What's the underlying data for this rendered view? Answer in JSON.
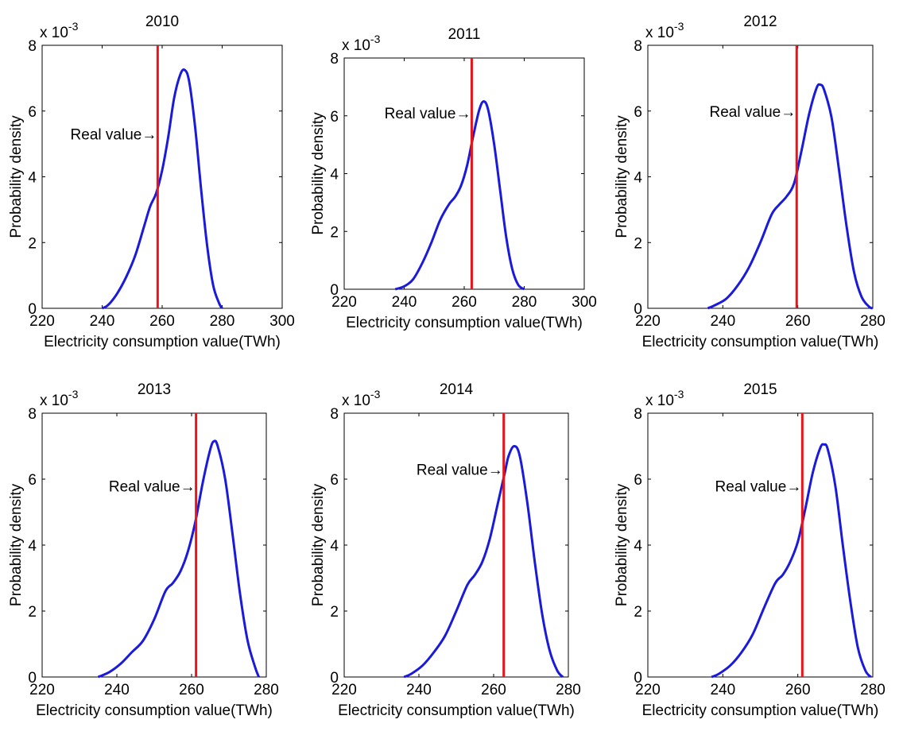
{
  "colors": {
    "curve": "#1a1adc",
    "real_value_line": "#e8141a",
    "axes": "#000000",
    "background": "#ffffff"
  },
  "chart_data": [
    {
      "type": "line",
      "title": "2010",
      "xlabel": "Electricity consumption value(TWh)",
      "ylabel": "Probability density",
      "y_multiplier_label": "x 10",
      "y_multiplier_exponent": "-3",
      "xlim": [
        220,
        300
      ],
      "ylim": [
        0,
        8
      ],
      "xticks": [
        220,
        240,
        260,
        280,
        300
      ],
      "yticks": [
        0,
        2,
        4,
        6,
        8
      ],
      "series": [
        {
          "x": [
            240,
            242,
            245,
            248,
            251,
            254,
            256,
            258,
            260,
            262,
            264,
            266,
            267.5,
            269,
            271,
            273,
            275,
            277,
            279,
            280
          ],
          "y": [
            0,
            0.1,
            0.45,
            0.95,
            1.6,
            2.5,
            3.1,
            3.5,
            4.2,
            5.2,
            6.4,
            7.1,
            7.25,
            6.9,
            5.5,
            3.6,
            1.9,
            0.7,
            0.15,
            0
          ]
        }
      ],
      "real_value": 258.5,
      "annotation": {
        "text": "Real value",
        "arrow": "→",
        "y": 5.3
      }
    },
    {
      "type": "line",
      "title": "2011",
      "xlabel": "Electricity consumption value(TWh)",
      "ylabel": "Probability density",
      "y_multiplier_label": "x 10",
      "y_multiplier_exponent": "-3",
      "xlim": [
        220,
        300
      ],
      "ylim": [
        0,
        8
      ],
      "xticks": [
        220,
        240,
        260,
        280,
        300
      ],
      "yticks": [
        0,
        2,
        4,
        6,
        8
      ],
      "series": [
        {
          "x": [
            237,
            240,
            243,
            246,
            249,
            252,
            255,
            257,
            259,
            261,
            263,
            265,
            266.5,
            268,
            270,
            272,
            274,
            276,
            278,
            280
          ],
          "y": [
            0,
            0.1,
            0.35,
            0.9,
            1.6,
            2.4,
            2.95,
            3.2,
            3.6,
            4.3,
            5.3,
            6.2,
            6.5,
            6.2,
            5.0,
            3.4,
            1.8,
            0.7,
            0.15,
            0
          ]
        }
      ],
      "real_value": 262.5,
      "annotation": {
        "text": "Real value",
        "arrow": "→",
        "y": 6.1
      }
    },
    {
      "type": "line",
      "title": "2012",
      "xlabel": "Electricity consumption value(TWh)",
      "ylabel": "Probability density",
      "y_multiplier_label": "x 10",
      "y_multiplier_exponent": "-3",
      "xlim": [
        220,
        280
      ],
      "ylim": [
        0,
        8
      ],
      "xticks": [
        220,
        240,
        260,
        280
      ],
      "yticks": [
        0,
        2,
        4,
        6,
        8
      ],
      "series": [
        {
          "x": [
            236,
            238,
            241,
            244,
            247,
            250,
            253,
            255,
            257,
            259,
            261,
            263,
            265,
            266,
            267,
            269,
            271,
            273,
            275,
            277,
            279,
            280
          ],
          "y": [
            0,
            0.1,
            0.3,
            0.7,
            1.25,
            2.0,
            2.85,
            3.15,
            3.4,
            3.8,
            4.8,
            5.9,
            6.7,
            6.8,
            6.65,
            5.8,
            4.2,
            2.5,
            1.1,
            0.35,
            0.05,
            0
          ]
        }
      ],
      "real_value": 259.7,
      "annotation": {
        "text": "Real value",
        "arrow": "→",
        "y": 6.0
      }
    },
    {
      "type": "line",
      "title": "2013",
      "xlabel": "Electricity consumption value(TWh)",
      "ylabel": "Probability density",
      "y_multiplier_label": "x 10",
      "y_multiplier_exponent": "-3",
      "xlim": [
        220,
        280
      ],
      "ylim": [
        0,
        8
      ],
      "xticks": [
        220,
        240,
        260,
        280
      ],
      "yticks": [
        0,
        2,
        4,
        6,
        8
      ],
      "series": [
        {
          "x": [
            235,
            238,
            241,
            244,
            247,
            250,
            253,
            255,
            257,
            259,
            261,
            263,
            265,
            266,
            267,
            269,
            271,
            273,
            275,
            277,
            278
          ],
          "y": [
            0,
            0.15,
            0.4,
            0.75,
            1.1,
            1.75,
            2.6,
            2.85,
            3.2,
            3.8,
            4.7,
            5.9,
            6.9,
            7.15,
            7.0,
            6.0,
            4.3,
            2.5,
            1.1,
            0.3,
            0
          ]
        }
      ],
      "real_value": 261.2,
      "annotation": {
        "text": "Real value",
        "arrow": "→",
        "y": 5.8
      }
    },
    {
      "type": "line",
      "title": "2014",
      "xlabel": "Electricity consumption value(TWh)",
      "ylabel": "Probability density",
      "y_multiplier_label": "x 10",
      "y_multiplier_exponent": "-3",
      "xlim": [
        220,
        280
      ],
      "ylim": [
        0,
        8
      ],
      "xticks": [
        220,
        240,
        260,
        280
      ],
      "yticks": [
        0,
        2,
        4,
        6,
        8
      ],
      "series": [
        {
          "x": [
            236,
            238,
            241,
            244,
            247,
            250,
            253,
            255,
            257,
            259,
            261,
            263,
            264,
            265.5,
            267,
            269,
            271,
            273,
            275,
            277,
            278.5
          ],
          "y": [
            0,
            0.1,
            0.35,
            0.75,
            1.25,
            2.0,
            2.8,
            3.1,
            3.5,
            4.2,
            5.2,
            6.2,
            6.7,
            7.0,
            6.7,
            5.3,
            3.5,
            1.9,
            0.8,
            0.2,
            0
          ]
        }
      ],
      "real_value": 262.7,
      "annotation": {
        "text": "Real value",
        "arrow": "→",
        "y": 6.3
      }
    },
    {
      "type": "line",
      "title": "2015",
      "xlabel": "Electricity consumption value(TWh)",
      "ylabel": "Probability density",
      "y_multiplier_label": "x 10",
      "y_multiplier_exponent": "-3",
      "xlim": [
        220,
        280
      ],
      "ylim": [
        0,
        8
      ],
      "xticks": [
        220,
        240,
        260,
        280
      ],
      "yticks": [
        0,
        2,
        4,
        6,
        8
      ],
      "series": [
        {
          "x": [
            237,
            239,
            242,
            245,
            248,
            251,
            254,
            256,
            258,
            260,
            262,
            264,
            266,
            267,
            268,
            270,
            272,
            274,
            276,
            278,
            279.5
          ],
          "y": [
            0,
            0.1,
            0.35,
            0.75,
            1.3,
            2.1,
            2.85,
            3.1,
            3.5,
            4.1,
            5.1,
            6.2,
            6.95,
            7.05,
            6.9,
            5.8,
            4.0,
            2.3,
            0.9,
            0.2,
            0
          ]
        }
      ],
      "real_value": 261.2,
      "annotation": {
        "text": "Real value",
        "arrow": "→",
        "y": 5.8
      }
    }
  ]
}
